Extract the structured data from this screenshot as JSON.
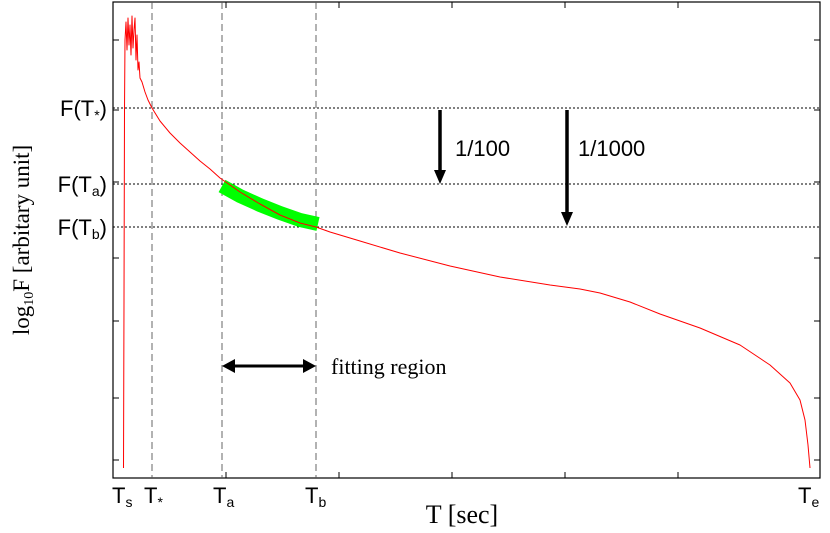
{
  "chart_data": {
    "type": "line",
    "title": "",
    "xlabel": "T [sec]",
    "ylabel_main": "log",
    "ylabel_sub": "10",
    "ylabel_rest": "F [arbitary unit]",
    "x_tick_labels": [
      {
        "main": "T",
        "sub": "s"
      },
      {
        "main": "T",
        "sub": "*"
      },
      {
        "main": "T",
        "sub": "a"
      },
      {
        "main": "T",
        "sub": "b"
      },
      {
        "main": "T",
        "sub": "e"
      }
    ],
    "y_level_labels": [
      {
        "main": "F(T",
        "sub": "*",
        "close": ")"
      },
      {
        "main": "F(T",
        "sub": "a",
        "close": ")"
      },
      {
        "main": "F(T",
        "sub": "b",
        "close": ")"
      }
    ],
    "annotations": {
      "drop_100": "1/100",
      "drop_1000": "1/1000",
      "fitting_region": "fitting region"
    },
    "grid": false,
    "series": [
      {
        "color": "#ff0000",
        "points": [
          [
            123.5,
            468
          ],
          [
            124,
            300
          ],
          [
            124.5,
            110
          ],
          [
            125,
            40
          ],
          [
            126,
            22
          ],
          [
            127,
            50
          ],
          [
            128,
            18
          ],
          [
            129,
            45
          ],
          [
            130,
            25
          ],
          [
            131,
            55
          ],
          [
            132,
            16
          ],
          [
            133,
            48
          ],
          [
            134,
            30
          ],
          [
            135,
            18
          ],
          [
            136,
            60
          ],
          [
            137,
            35
          ],
          [
            138,
            70
          ],
          [
            139,
            62
          ],
          [
            140,
            78
          ],
          [
            142,
            82
          ],
          [
            145,
            92
          ],
          [
            148,
            100
          ],
          [
            152,
            108
          ],
          [
            160,
            121
          ],
          [
            170,
            133
          ],
          [
            180,
            143
          ],
          [
            190,
            152
          ],
          [
            200,
            161
          ],
          [
            210,
            169
          ],
          [
            220,
            178
          ],
          [
            240,
            192
          ],
          [
            260,
            204
          ],
          [
            280,
            215
          ],
          [
            300,
            223
          ],
          [
            316,
            227
          ],
          [
            330,
            232
          ],
          [
            360,
            241
          ],
          [
            400,
            253
          ],
          [
            450,
            266
          ],
          [
            500,
            277
          ],
          [
            550,
            285
          ],
          [
            580,
            289
          ],
          [
            600,
            293
          ],
          [
            630,
            302
          ],
          [
            660,
            314
          ],
          [
            700,
            328
          ],
          [
            740,
            345
          ],
          [
            770,
            365
          ],
          [
            790,
            383
          ],
          [
            800,
            400
          ],
          [
            805,
            420
          ],
          [
            808,
            445
          ],
          [
            810,
            468
          ]
        ]
      }
    ],
    "fit_band": {
      "color": "#00ff00",
      "points": [
        [
          222,
          186
        ],
        [
          240,
          196
        ],
        [
          260,
          205
        ],
        [
          280,
          213
        ],
        [
          300,
          220
        ],
        [
          318,
          224
        ]
      ]
    }
  }
}
